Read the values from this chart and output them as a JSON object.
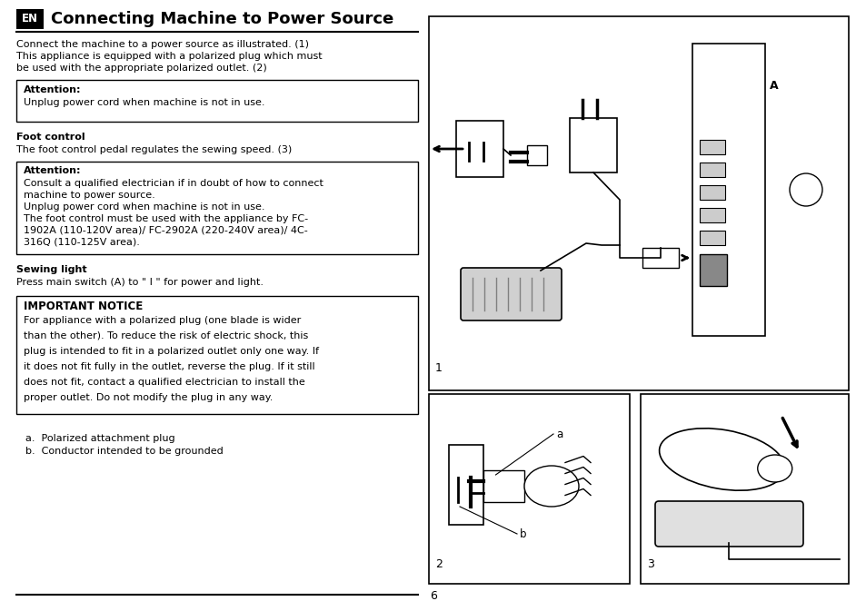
{
  "title": "Connecting Machine to Power Source",
  "en_label": "EN",
  "page_number": "6",
  "bg_color": "#ffffff",
  "text_color": "#000000",
  "intro_text": "Connect the machine to a power source as illustrated. (1)\nThis appliance is equipped with a polarized plug which must\nbe used with the appropriate polarized outlet. (2)",
  "attention1_label": "Attention:",
  "attention1_text": "Unplug power cord when machine is not in use.",
  "foot_control_label": "Foot control",
  "foot_control_text": "The foot control pedal regulates the sewing speed. (3)",
  "attention2_label": "Attention:",
  "attention2_lines": [
    "Consult a qualified electrician if in doubt of how to connect",
    "machine to power source.",
    "Unplug power cord when machine is not in use.",
    "The foot control must be used with the appliance by FC-",
    "1902A (110-120V area)/ FC-2902A (220-240V area)/ 4C-",
    "316Q (110-125V area)."
  ],
  "sewing_light_label": "Sewing light",
  "sewing_light_text": "Press main switch (A) to \" I \" for power and light.",
  "important_notice_label": "IMPORTANT NOTICE",
  "important_notice_lines": [
    "For appliance with a polarized plug (one blade is wider",
    "than the other). To reduce the risk of electric shock, this",
    "plug is intended to fit in a polarized outlet only one way. If",
    "it does not fit fully in the outlet, reverse the plug. If it still",
    "does not fit, contact a qualified electrician to install the",
    "proper outlet. Do not modify the plug in any way."
  ],
  "footnote_a": "a.  Polarized attachment plug",
  "footnote_b": "b.  Conductor intended to be grounded",
  "fig1_label": "1",
  "fig2_label": "2",
  "fig3_label": "3"
}
